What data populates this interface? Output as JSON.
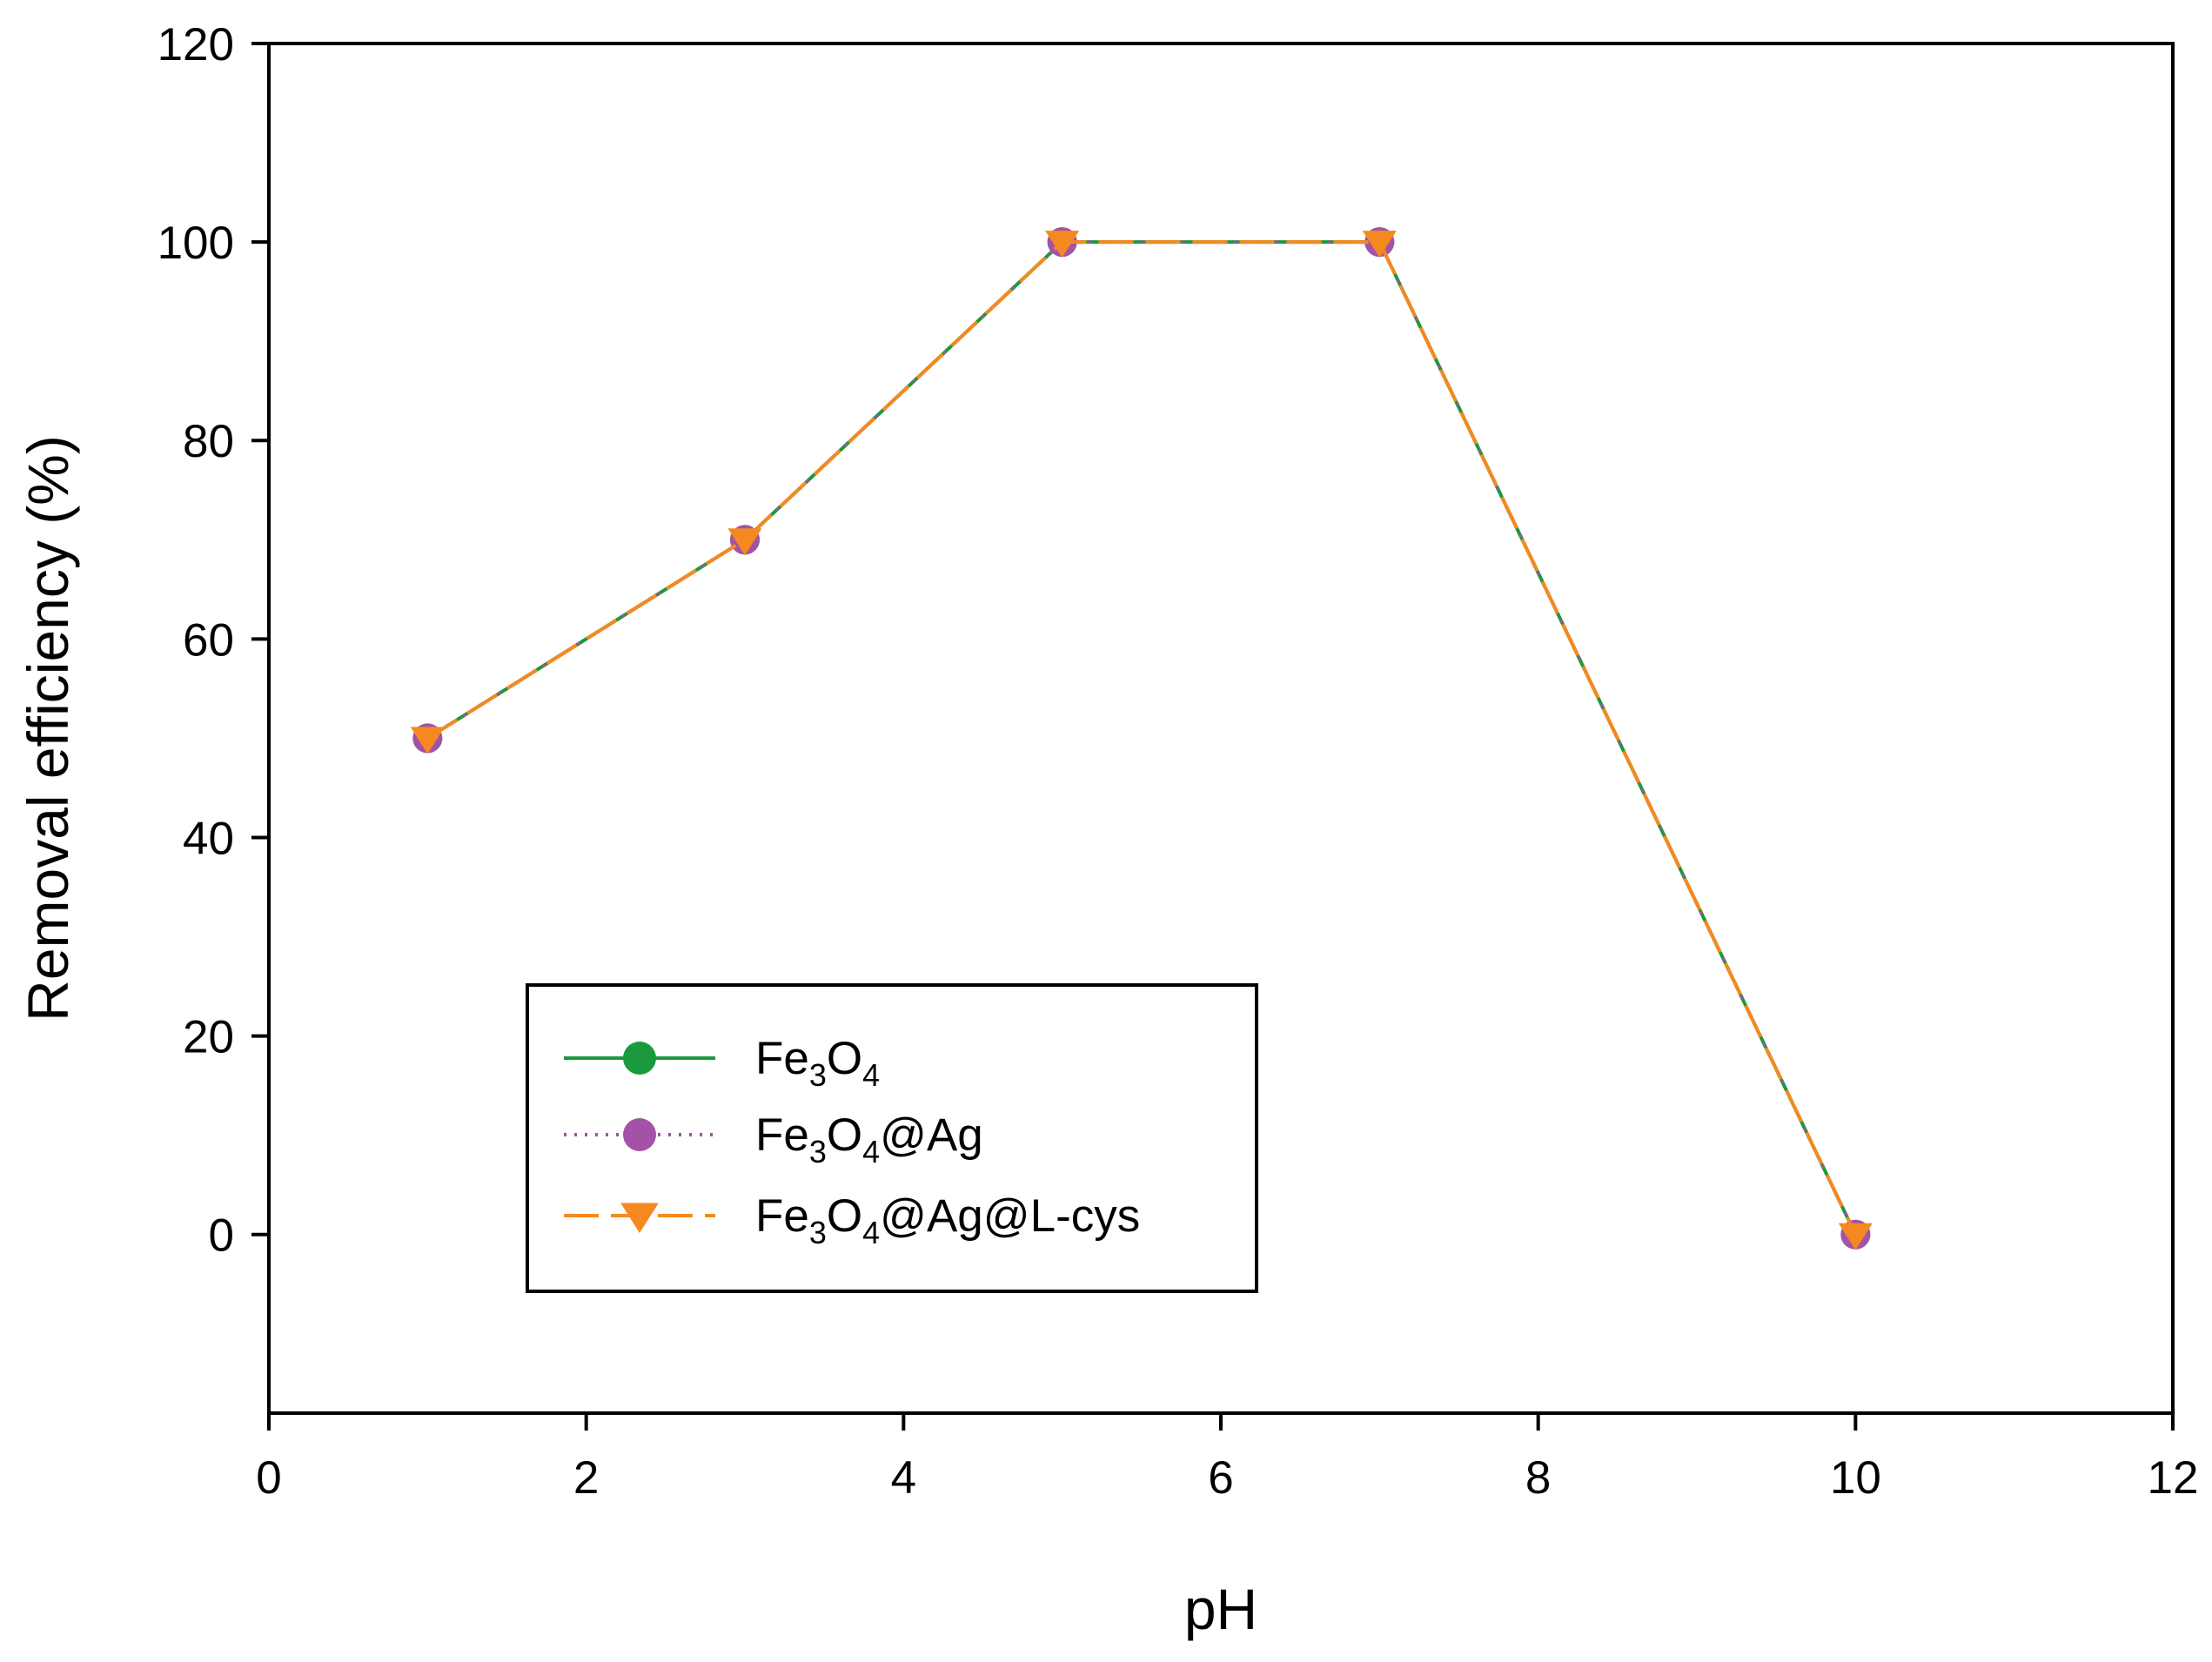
{
  "chart_data": {
    "type": "line",
    "title": "",
    "xlabel": "pH",
    "ylabel": "Removal efficiency (%)",
    "xlim": [
      0,
      12
    ],
    "ylim": [
      -18,
      120
    ],
    "x_ticks": [
      0,
      2,
      4,
      6,
      8,
      10,
      12
    ],
    "y_ticks": [
      0,
      20,
      40,
      60,
      80,
      100,
      120
    ],
    "grid": false,
    "legend_position": "lower-left",
    "x": [
      1,
      3,
      5,
      7,
      10
    ],
    "series": [
      {
        "name": "Fe3O4",
        "legend_parts": [
          {
            "text": "Fe",
            "sub": false
          },
          {
            "text": "3",
            "sub": true
          },
          {
            "text": "O",
            "sub": false
          },
          {
            "text": "4",
            "sub": true
          }
        ],
        "values": [
          50,
          70,
          100,
          100,
          0
        ],
        "color": "#1a9a3c",
        "line_style": "solid",
        "marker": "circle"
      },
      {
        "name": "Fe3O4@Ag",
        "legend_parts": [
          {
            "text": "Fe",
            "sub": false
          },
          {
            "text": "3",
            "sub": true
          },
          {
            "text": "O",
            "sub": false
          },
          {
            "text": "4",
            "sub": true
          },
          {
            "text": "@Ag",
            "sub": false
          }
        ],
        "values": [
          50,
          70,
          100,
          100,
          0
        ],
        "color": "#a352a8",
        "line_style": "dotted",
        "marker": "circle"
      },
      {
        "name": "Fe3O4@Ag@L-cys",
        "legend_parts": [
          {
            "text": "Fe",
            "sub": false
          },
          {
            "text": "3",
            "sub": true
          },
          {
            "text": "O",
            "sub": false
          },
          {
            "text": "4",
            "sub": true
          },
          {
            "text": "@Ag@L-cys",
            "sub": false
          }
        ],
        "values": [
          50,
          70,
          100,
          100,
          0
        ],
        "color": "#f5891f",
        "line_style": "dashed",
        "marker": "triangle-down"
      }
    ]
  }
}
